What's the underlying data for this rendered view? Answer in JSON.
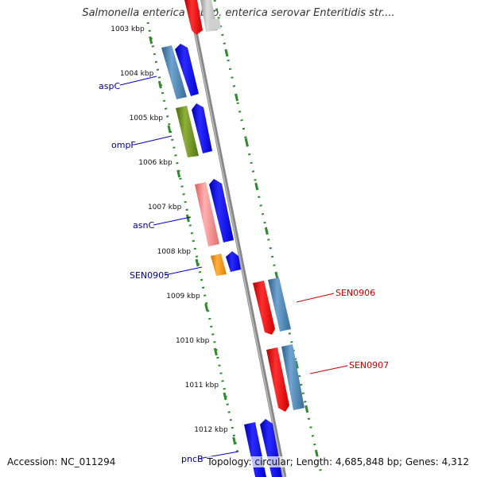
{
  "title": "Salmonella enterica subsp. enterica serovar Enteritidis str....",
  "footer": {
    "accession": "Accession: NC_011294",
    "summary": "Topology: circular; Length: 4,685,848 bp; Genes: 4,312"
  },
  "kbp_labels": [
    "1003 kbp",
    "1004 kbp",
    "1005 kbp",
    "1006 kbp",
    "1007 kbp",
    "1008 kbp",
    "1009 kbp",
    "1010 kbp",
    "1011 kbp",
    "1012 kbp"
  ],
  "gene_labels": {
    "aspC": "aspC",
    "ompF": "ompF",
    "asnC": "asnC",
    "SEN0905": "SEN0905",
    "SEN0906": "SEN0906",
    "SEN0907": "SEN0907",
    "pncB": "pncB"
  },
  "colors": {
    "forward_blue": "#0000ee",
    "steel_blue": "#4682b4",
    "olive": "#6b8e23",
    "pink": "#f08080",
    "orange": "#ff8c00",
    "red": "#ee0000",
    "green_ticks": "#2e8b2e",
    "label_blue": "#00008b",
    "label_red": "#cc0000",
    "backbone": "#888888"
  }
}
